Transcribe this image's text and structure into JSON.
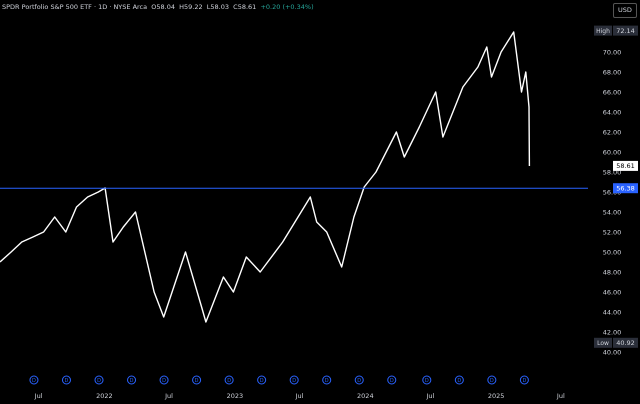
{
  "header": {
    "symbol_desc": "SPDR Portfolio S&P 500 ETF · 1D · NYSE Arca",
    "o_label": "O",
    "o_val": "58.04",
    "h_label": "H",
    "h_val": "59.22",
    "l_label": "L",
    "l_val": "58.03",
    "c_label": "C",
    "c_val": "58.61",
    "change": "+0.20 (+0.34%)",
    "currency": "USD"
  },
  "colors": {
    "background": "#000000",
    "price": "#ffffff",
    "hline": "#2962ff",
    "high_tag": "#2a2e39",
    "current_tag": "#ffffff",
    "hline_tag": "#2962ff",
    "dividend": "#2962ff",
    "positive": "#26a69a"
  },
  "chart_data": {
    "type": "line",
    "title": "",
    "xlabel": "",
    "ylabel": "",
    "ylim": [
      40,
      73
    ],
    "y_ticks": [
      40,
      42,
      44,
      46,
      48,
      50,
      52,
      54,
      56,
      58,
      60,
      62,
      64,
      66,
      68,
      70
    ],
    "x_ticks": [
      {
        "label": "Jul",
        "date": "2021-07-01"
      },
      {
        "label": "2022",
        "date": "2022-01-01"
      },
      {
        "label": "Jul",
        "date": "2022-07-01"
      },
      {
        "label": "2023",
        "date": "2023-01-01"
      },
      {
        "label": "Jul",
        "date": "2023-07-01"
      },
      {
        "label": "2024",
        "date": "2024-01-01"
      },
      {
        "label": "Jul",
        "date": "2024-07-01"
      },
      {
        "label": "2025",
        "date": "2025-01-01"
      },
      {
        "label": "Jul",
        "date": "2025-07-01"
      }
    ],
    "xlim": [
      "2021-03-15",
      "2025-09-15"
    ],
    "series": [
      {
        "x": [
          "2021-03-15",
          "2021-04-15",
          "2021-05-15",
          "2021-06-15",
          "2021-07-15",
          "2021-08-15",
          "2021-09-15",
          "2021-10-15",
          "2021-11-15",
          "2021-12-15",
          "2022-01-03",
          "2022-01-25",
          "2022-02-23",
          "2022-03-29",
          "2022-05-20",
          "2022-06-16",
          "2022-08-16",
          "2022-09-30",
          "2022-10-12",
          "2022-11-30",
          "2022-12-28",
          "2023-02-02",
          "2023-03-13",
          "2023-05-15",
          "2023-07-31",
          "2023-08-18",
          "2023-09-15",
          "2023-10-27",
          "2023-11-30",
          "2023-12-29",
          "2024-01-31",
          "2024-03-28",
          "2024-04-19",
          "2024-05-31",
          "2024-07-16",
          "2024-08-05",
          "2024-09-30",
          "2024-11-11",
          "2024-12-06",
          "2024-12-19",
          "2025-01-15",
          "2025-02-19",
          "2025-03-13",
          "2025-03-25",
          "2025-04-03",
          "2025-04-04"
        ],
        "y": [
          49.0,
          50.0,
          51.0,
          51.5,
          52.0,
          53.5,
          52.0,
          54.5,
          55.5,
          56.0,
          56.4,
          51.0,
          52.5,
          54.0,
          46.0,
          43.5,
          50.0,
          44.5,
          43.0,
          47.5,
          46.0,
          49.5,
          48.0,
          51.0,
          55.5,
          53.0,
          52.0,
          48.5,
          53.5,
          56.5,
          58.0,
          62.0,
          59.5,
          62.5,
          66.0,
          61.5,
          66.5,
          68.5,
          70.5,
          67.5,
          70.0,
          72.0,
          66.0,
          68.0,
          64.5,
          58.6
        ]
      }
    ],
    "high": {
      "label": "High",
      "value": "72.14"
    },
    "low": {
      "label": "Low",
      "value": "40.92"
    },
    "last_price": {
      "value": "58.61"
    },
    "horizontal_line": {
      "value": "56.38"
    },
    "dividend_marker": "D",
    "dividend_dates": [
      "2021-06-18",
      "2021-09-17",
      "2021-12-17",
      "2022-03-18",
      "2022-06-17",
      "2022-09-16",
      "2022-12-16",
      "2023-03-17",
      "2023-06-16",
      "2023-09-15",
      "2023-12-15",
      "2024-03-15",
      "2024-06-21",
      "2024-09-20",
      "2024-12-20",
      "2025-03-21"
    ],
    "grid": false,
    "legend": "none"
  }
}
